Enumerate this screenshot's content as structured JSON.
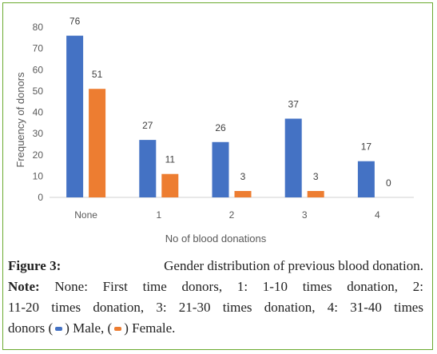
{
  "chart_data": {
    "type": "bar",
    "categories": [
      "None",
      "1",
      "2",
      "3",
      "4"
    ],
    "series": [
      {
        "name": "Male",
        "values": [
          76,
          27,
          26,
          37,
          17
        ],
        "color": "#4472c4"
      },
      {
        "name": "Female",
        "values": [
          51,
          11,
          3,
          3,
          0
        ],
        "color": "#ed7d31"
      }
    ],
    "xlabel": "No of blood donations",
    "ylabel": "Frequency of donors",
    "ylim": [
      0,
      80
    ],
    "yticks": [
      0,
      10,
      20,
      30,
      40,
      50,
      60,
      70,
      80
    ],
    "grid": false,
    "legend": "caption"
  },
  "caption": {
    "figure_label": "Figure 3:",
    "figure_text": "Gender distribution of previous blood donation.",
    "note_label": "Note:",
    "line2_parts": [
      "None:",
      "First",
      "time",
      "donors,",
      "1:",
      "1-10",
      "times",
      "donation,",
      "2:"
    ],
    "line3_parts": [
      "11-20",
      "times",
      "donation,",
      "3:",
      "21-30",
      "times",
      "donation,",
      "4:",
      "31-40",
      "times"
    ],
    "line4_start": "donors (",
    "male_label": ") Male, (",
    "female_label": ") Female."
  }
}
